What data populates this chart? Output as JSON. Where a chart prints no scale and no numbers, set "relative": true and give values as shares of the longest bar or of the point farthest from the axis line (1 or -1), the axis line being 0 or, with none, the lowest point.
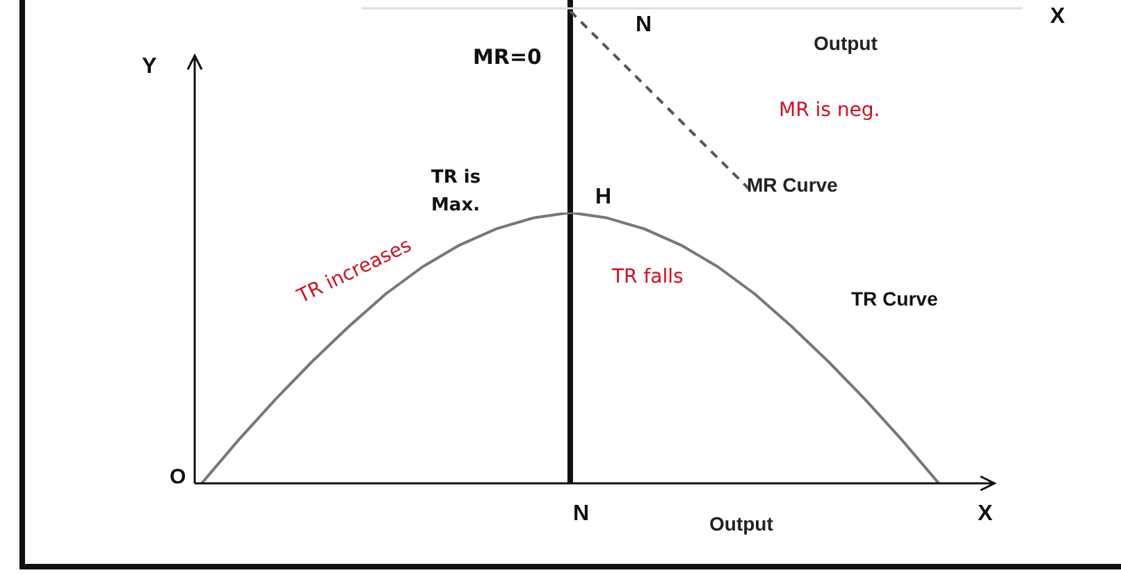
{
  "chart_data": [
    {
      "type": "line",
      "relative": true,
      "categories": [
        null,
        null,
        null,
        null,
        null,
        null,
        null,
        null,
        null,
        null,
        null,
        null,
        null,
        null,
        null,
        null,
        null,
        null,
        null,
        null,
        null
      ],
      "series": [
        {
          "name": "MR Curve",
          "color": "#555555",
          "line_style": "dashed",
          "values": [
            null,
            null,
            null,
            null,
            null,
            null,
            null,
            null,
            null,
            null,
            0,
            -0.2,
            -0.4,
            -0.6,
            -0.8,
            -1,
            null,
            null,
            null,
            null,
            null
          ]
        }
      ],
      "annotations": [
        "MR=0",
        "N",
        "Output",
        "X",
        "MR is neg."
      ]
    },
    {
      "type": "line",
      "relative": true,
      "categories": [
        null,
        null,
        null,
        null,
        null,
        null,
        null,
        null,
        null,
        null,
        null,
        null,
        null,
        null,
        null,
        null,
        null,
        null,
        null,
        null,
        null
      ],
      "series": [
        {
          "name": "TR Curve",
          "color": "#777777",
          "values": [
            0,
            0.16,
            0.31,
            0.45,
            0.58,
            0.7,
            0.8,
            0.88,
            0.94,
            0.98,
            1,
            0.98,
            0.94,
            0.88,
            0.8,
            0.7,
            0.58,
            0.45,
            0.31,
            0.16,
            0
          ]
        }
      ],
      "annotations": [
        "Y",
        "X",
        "O",
        "N",
        "H",
        "Output",
        "TR is Max.",
        "TR increases",
        "TR falls"
      ]
    }
  ]
}
